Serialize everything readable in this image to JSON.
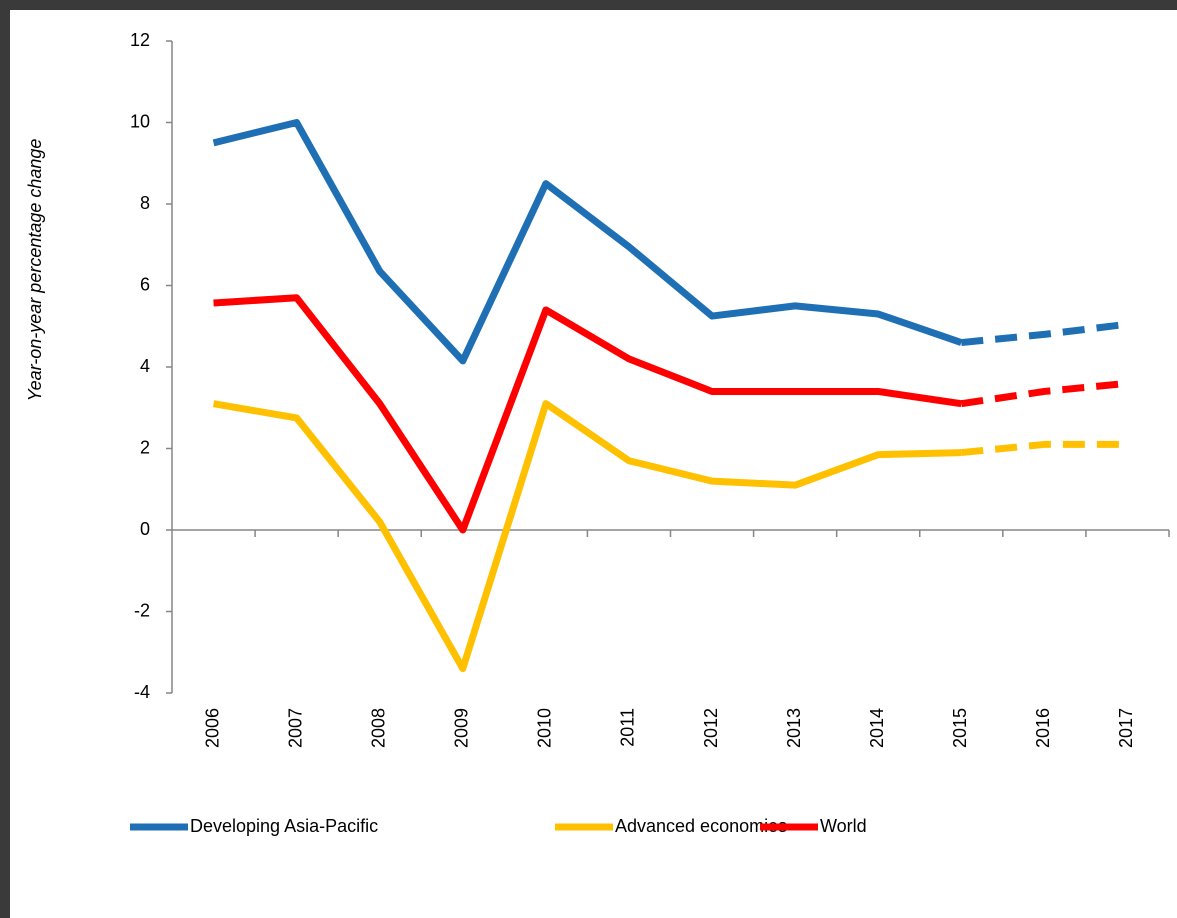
{
  "chart_data": {
    "type": "line",
    "y_axis_label": "Year-on-year percentage change",
    "categories": [
      "2006",
      "2007",
      "2008",
      "2009",
      "2010",
      "2011",
      "2012",
      "2013",
      "2014",
      "2015",
      "2016",
      "2017"
    ],
    "dashed_from": "2015",
    "series": [
      {
        "name": "Developing Asia-Pacific",
        "color": "#1f6fb5",
        "values": [
          9.5,
          10.0,
          6.35,
          4.15,
          8.5,
          6.95,
          5.25,
          5.5,
          5.3,
          4.6,
          4.8,
          5.05
        ]
      },
      {
        "name": "Advanced economies",
        "color": "#ffc000",
        "values": [
          3.1,
          2.75,
          0.2,
          -3.4,
          3.1,
          1.7,
          1.2,
          1.1,
          1.85,
          1.9,
          2.1,
          2.1
        ]
      },
      {
        "name": "World",
        "color": "#ff0000",
        "values": [
          5.57,
          5.7,
          3.1,
          0.0,
          5.4,
          4.2,
          3.4,
          3.4,
          3.4,
          3.1,
          3.4,
          3.6
        ]
      }
    ],
    "ylim": [
      -4,
      12
    ],
    "yticks": [
      -4,
      -2,
      0,
      2,
      4,
      6,
      8,
      10,
      12
    ],
    "grid": false
  }
}
